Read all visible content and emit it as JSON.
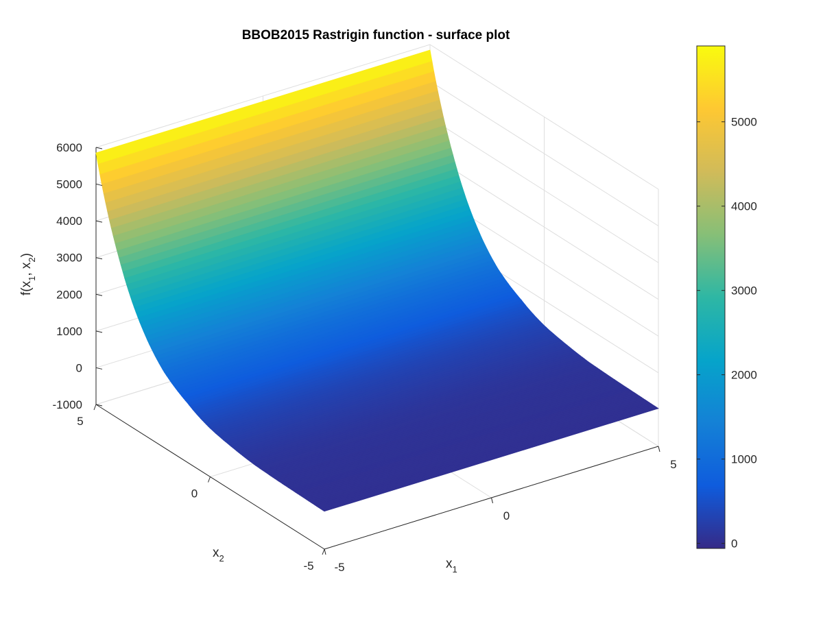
{
  "chart_data": {
    "type": "surface",
    "title": "BBOB2015 Rastrigin function - surface plot",
    "xlabel": {
      "base": "x",
      "sub": "1"
    },
    "ylabel": {
      "base": "x",
      "sub": "2"
    },
    "zlabel": {
      "pre": "f(x",
      "sub1": "1",
      "mid": ", x",
      "sub2": "2",
      "post": ")"
    },
    "xlim": [
      -5,
      5
    ],
    "ylim": [
      -5,
      5
    ],
    "zlim": [
      -1000,
      6000
    ],
    "x_ticks": [
      "-5",
      "0",
      "5"
    ],
    "y_ticks": [
      "-5",
      "0",
      "5"
    ],
    "z_ticks": [
      "-1000",
      "0",
      "1000",
      "2000",
      "3000",
      "4000",
      "5000",
      "6000"
    ],
    "colorbar": {
      "range": [
        -60,
        5900
      ],
      "ticks": [
        "0",
        "1000",
        "2000",
        "3000",
        "4000",
        "5000"
      ],
      "colormap": "parula"
    },
    "surface_profile": {
      "x2": [
        -5,
        -4,
        -3,
        -2,
        -1,
        0,
        1,
        2,
        3,
        4,
        5
      ],
      "f": [
        30,
        45,
        60,
        90,
        180,
        320,
        620,
        1050,
        1900,
        3400,
        5850
      ]
    },
    "grid": true,
    "colors": {
      "axis": "#262626",
      "grid": "#dedede"
    }
  }
}
